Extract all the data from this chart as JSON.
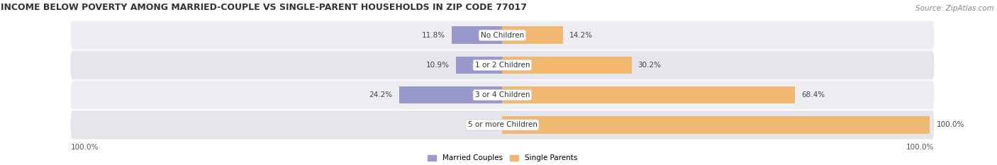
{
  "title": "INCOME BELOW POVERTY AMONG MARRIED-COUPLE VS SINGLE-PARENT HOUSEHOLDS IN ZIP CODE 77017",
  "source_text": "Source: ZipAtlas.com",
  "categories": [
    "No Children",
    "1 or 2 Children",
    "3 or 4 Children",
    "5 or more Children"
  ],
  "married_values": [
    11.8,
    10.9,
    24.2,
    0.0
  ],
  "single_values": [
    14.2,
    30.2,
    68.4,
    100.0
  ],
  "married_color": "#9999cc",
  "single_color": "#f0b870",
  "row_bg_even": "#ededf2",
  "row_bg_odd": "#e5e5ec",
  "title_fontsize": 9.0,
  "label_fontsize": 7.5,
  "category_fontsize": 7.5,
  "axis_label_fontsize": 7.5,
  "source_fontsize": 7.5,
  "max_value": 100.0,
  "left_axis_label": "100.0%",
  "right_axis_label": "100.0%",
  "background_color": "#ffffff"
}
